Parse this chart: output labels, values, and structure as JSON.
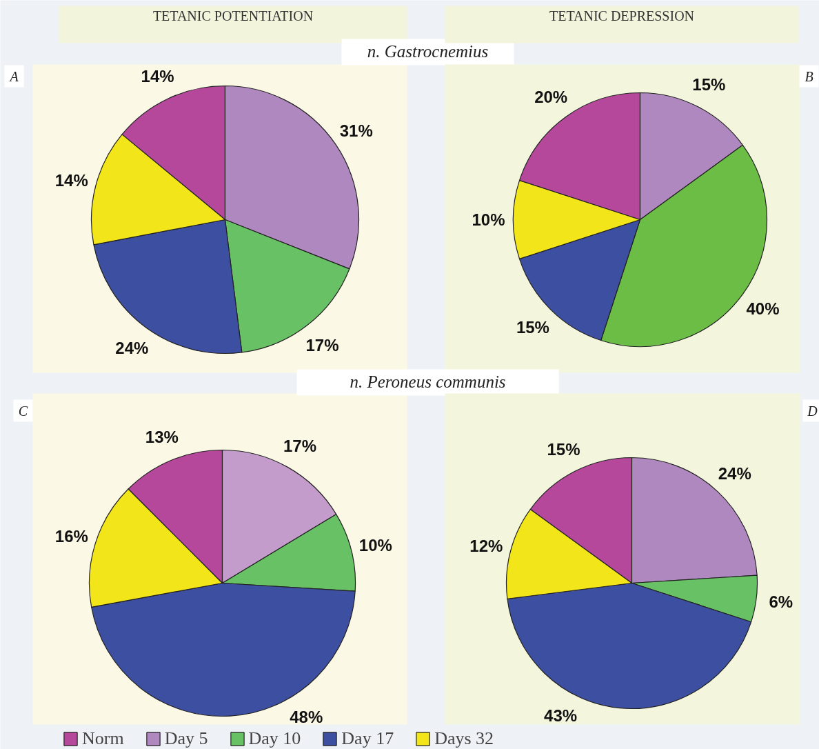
{
  "chart_data": [
    {
      "type": "pie",
      "title": "TETANIC POTENTIATION",
      "subtitle": "n. Gastrocnemius",
      "annotations": [
        "A"
      ],
      "legend": "bottom",
      "categories": [
        "Norm",
        "Day 5",
        "Day 10",
        "Day 17",
        "Days 32"
      ],
      "values": [
        14,
        31,
        17,
        24,
        14
      ],
      "value_labels": [
        "14%",
        "31%",
        "17%",
        "24%",
        "14%"
      ],
      "colors": [
        "#b5489a",
        "#b088c0",
        "#68c165",
        "#3d4fa0",
        "#f2e61a"
      ]
    },
    {
      "type": "pie",
      "title": "TETANIC DEPRESSION",
      "annotations": [
        "B"
      ],
      "categories": [
        null,
        null,
        null,
        null,
        null
      ],
      "values": [
        20,
        15,
        40,
        15,
        10
      ],
      "value_labels": [
        "20%",
        "15%",
        "40%",
        "15%",
        "10%"
      ],
      "colors": [
        "#b5489a",
        "#b088c0",
        "#6cbd45",
        "#3d4fa0",
        "#f2e61a"
      ]
    },
    {
      "type": "pie",
      "subtitle": "n. Peroneus communis",
      "annotations": [
        "C"
      ],
      "categories": [
        null,
        null,
        null,
        null,
        null
      ],
      "values": [
        13,
        17,
        10,
        48,
        16
      ],
      "value_labels": [
        "13%",
        "17%",
        "10%",
        "48%",
        "16%"
      ],
      "colors": [
        "#b5489a",
        "#c39ccb",
        "#68c165",
        "#3d4fa0",
        "#f2e61a"
      ]
    },
    {
      "type": "pie",
      "annotations": [
        "D"
      ],
      "categories": [
        null,
        null,
        null,
        null,
        null
      ],
      "values": [
        15,
        24,
        6,
        43,
        12
      ],
      "value_labels": [
        "15%",
        "24%",
        "6%",
        "43%",
        "12%"
      ],
      "colors": [
        "#b5489a",
        "#b088c0",
        "#68c165",
        "#3d4fa0",
        "#f2e61a"
      ]
    }
  ]
}
